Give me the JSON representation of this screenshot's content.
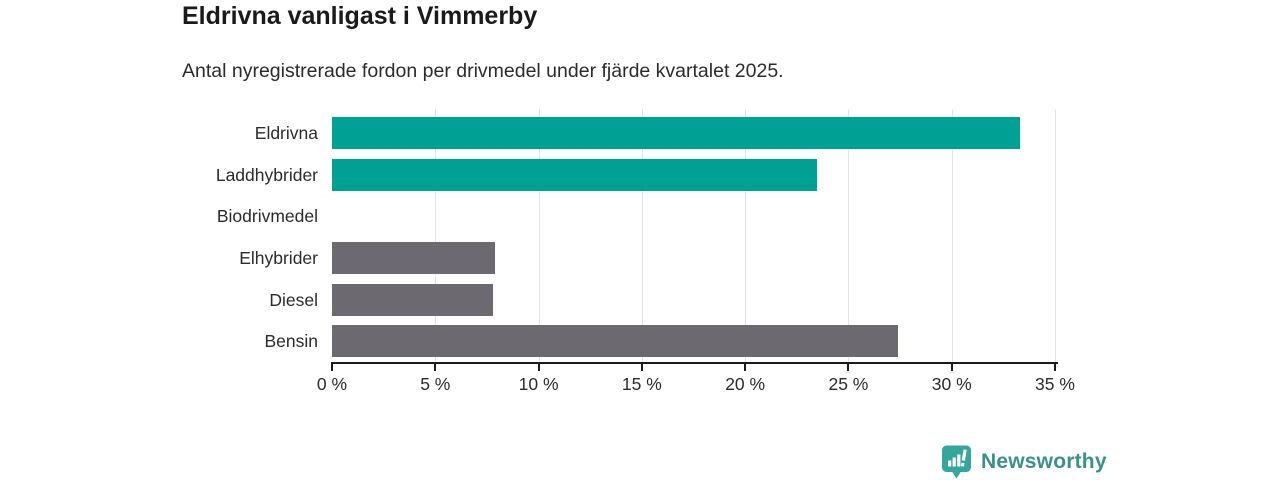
{
  "chart_data": {
    "type": "bar",
    "orientation": "horizontal",
    "title": "Eldrivna vanligast i Vimmerby",
    "subtitle": "Antal nyregistrerade fordon per drivmedel under fjärde kvartalet 2025.",
    "categories": [
      "Eldrivna",
      "Laddhybrider",
      "Biodrivmedel",
      "Elhybrider",
      "Diesel",
      "Bensin"
    ],
    "values": [
      33.3,
      23.5,
      0,
      7.9,
      7.8,
      27.4
    ],
    "unit": "%",
    "bar_colors": [
      "#00a195",
      "#00a195",
      "#6c6a70",
      "#6c6a70",
      "#6c6a70",
      "#6c6a70"
    ],
    "x_ticks": [
      "0 %",
      "5 %",
      "10 %",
      "15 %",
      "20 %",
      "25 %",
      "30 %",
      "35 %"
    ],
    "xlim": [
      0,
      35
    ],
    "xlabel": "",
    "ylabel": "",
    "grid": "vertical",
    "gridline_color": "#e3e3e3",
    "axis_color": "#1a1a1a",
    "legend": "none"
  },
  "footer": {
    "brand": "Newsworthy",
    "icon": "newsworthy-chart-bubble-icon",
    "icon_color": "#35a69b",
    "text_color": "#3a908a"
  }
}
